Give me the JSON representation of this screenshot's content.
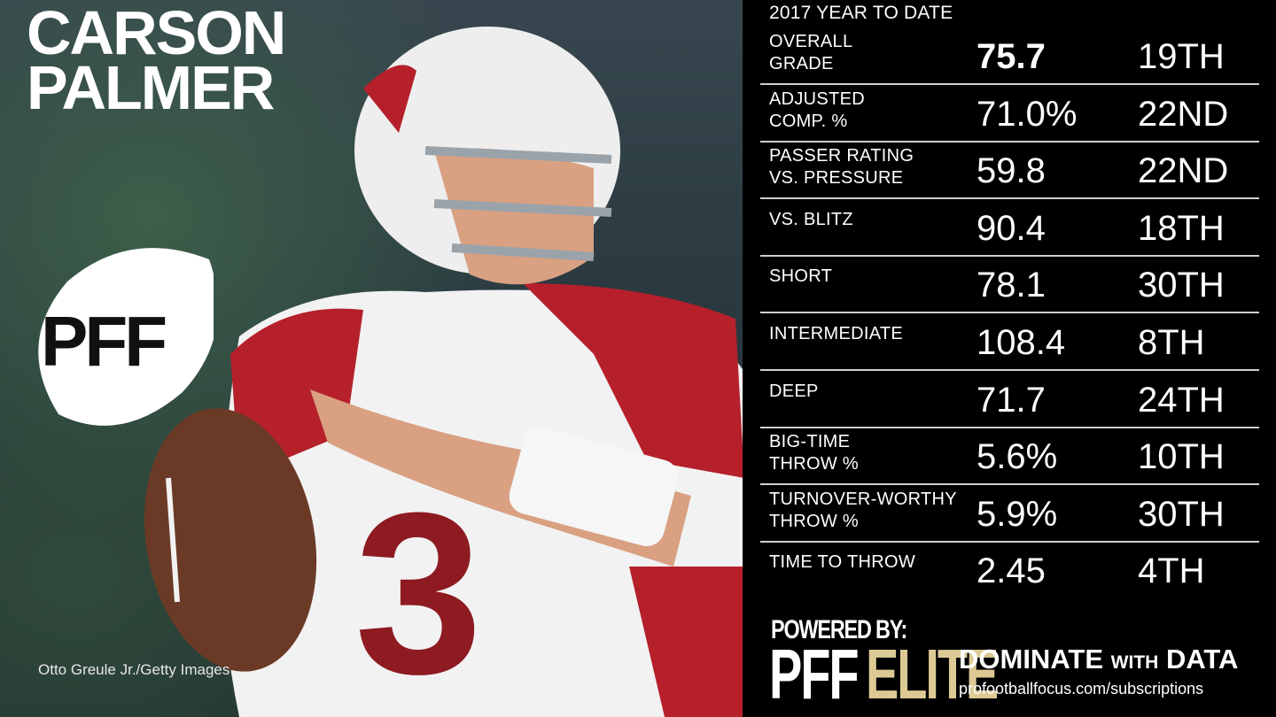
{
  "player": {
    "first_name": "CARSON",
    "last_name": "PALMER"
  },
  "photo_credit": "Otto Greule Jr./Getty Images",
  "pff_logo_text": "PFF",
  "panel": {
    "title": "2017 YEAR TO DATE",
    "rows": [
      {
        "label_line1": "OVERALL",
        "label_line2": "GRADE",
        "value": "75.7",
        "rank": "19TH"
      },
      {
        "label_line1": "ADJUSTED",
        "label_line2": "COMP. %",
        "value": "71.0%",
        "rank": "22ND"
      },
      {
        "label_line1": "PASSER RATING",
        "label_line2": "VS. PRESSURE",
        "value": "59.8",
        "rank": "22ND"
      },
      {
        "label_line1": "VS. BLITZ",
        "label_line2": "",
        "value": "90.4",
        "rank": "18TH"
      },
      {
        "label_line1": "SHORT",
        "label_line2": "",
        "value": "78.1",
        "rank": "30TH"
      },
      {
        "label_line1": "INTERMEDIATE",
        "label_line2": "",
        "value": "108.4",
        "rank": "8TH"
      },
      {
        "label_line1": "DEEP",
        "label_line2": "",
        "value": "71.7",
        "rank": "24TH"
      },
      {
        "label_line1": "BIG-TIME",
        "label_line2": "THROW %",
        "value": "5.6%",
        "rank": "10TH"
      },
      {
        "label_line1": "TURNOVER-WORTHY",
        "label_line2": "THROW %",
        "value": "5.9%",
        "rank": "30TH"
      },
      {
        "label_line1": "TIME TO THROW",
        "label_line2": "",
        "value": "2.45",
        "rank": "4TH"
      }
    ]
  },
  "promo": {
    "powered_by": "POWERED BY:",
    "brand_pff": "PFF",
    "brand_elite": "ELITE",
    "tagline_word1": "DOMINATE",
    "tagline_small": "WITH",
    "tagline_word2": "DATA",
    "url": "profootballfocus.com/subscriptions"
  },
  "colors": {
    "elite_gold": "#dcc994",
    "jersey_red": "#b5202b",
    "panel_bg": "#000000"
  }
}
